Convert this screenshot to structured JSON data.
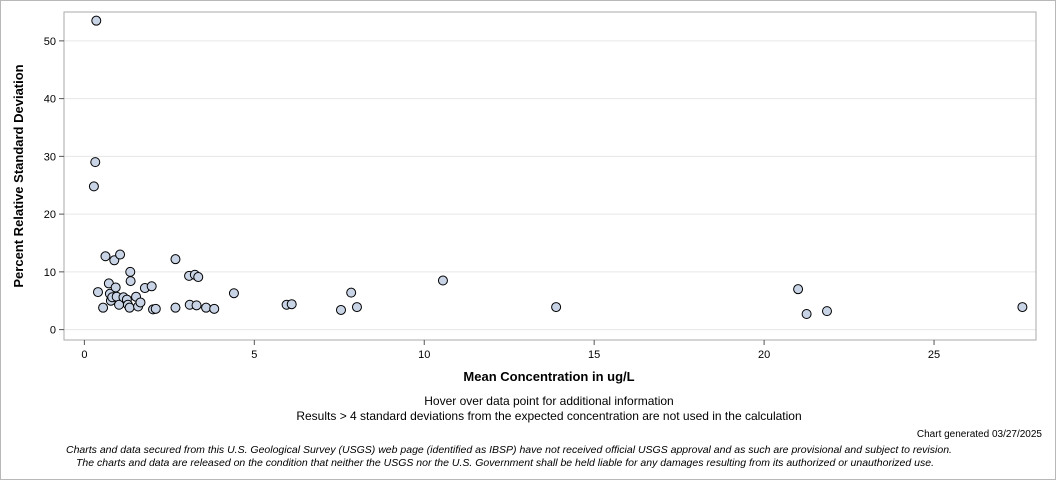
{
  "chart_data": {
    "type": "scatter",
    "xlabel": "Mean Concentration in ug/L",
    "ylabel": "Percent Relative Standard Deviation",
    "xlim": [
      -0.6,
      28.0
    ],
    "ylim": [
      -1.8,
      55.0
    ],
    "xticks": [
      0,
      5,
      10,
      15,
      20,
      25
    ],
    "yticks": [
      0,
      10,
      20,
      30,
      40,
      50
    ],
    "grid": true,
    "legend": "none",
    "marker_fill": "#c8d4e6",
    "marker_edge": "#000000",
    "points": [
      {
        "x": 0.35,
        "y": 53.5
      },
      {
        "x": 0.32,
        "y": 29.0
      },
      {
        "x": 0.28,
        "y": 24.8
      },
      {
        "x": 0.4,
        "y": 6.5
      },
      {
        "x": 0.55,
        "y": 3.8
      },
      {
        "x": 0.62,
        "y": 12.7
      },
      {
        "x": 0.72,
        "y": 8.0
      },
      {
        "x": 0.75,
        "y": 6.2
      },
      {
        "x": 0.78,
        "y": 5.0
      },
      {
        "x": 0.82,
        "y": 5.6
      },
      {
        "x": 0.88,
        "y": 12.0
      },
      {
        "x": 0.92,
        "y": 7.3
      },
      {
        "x": 0.95,
        "y": 5.7
      },
      {
        "x": 1.02,
        "y": 4.3
      },
      {
        "x": 1.05,
        "y": 13.0
      },
      {
        "x": 1.15,
        "y": 5.6
      },
      {
        "x": 1.25,
        "y": 5.2
      },
      {
        "x": 1.28,
        "y": 4.3
      },
      {
        "x": 1.33,
        "y": 3.8
      },
      {
        "x": 1.35,
        "y": 10.0
      },
      {
        "x": 1.36,
        "y": 8.4
      },
      {
        "x": 1.52,
        "y": 5.7
      },
      {
        "x": 1.58,
        "y": 4.0
      },
      {
        "x": 1.65,
        "y": 4.7
      },
      {
        "x": 1.78,
        "y": 7.2
      },
      {
        "x": 1.98,
        "y": 7.5
      },
      {
        "x": 2.02,
        "y": 3.5
      },
      {
        "x": 2.1,
        "y": 3.6
      },
      {
        "x": 2.68,
        "y": 12.2
      },
      {
        "x": 2.68,
        "y": 3.8
      },
      {
        "x": 3.08,
        "y": 9.3
      },
      {
        "x": 3.1,
        "y": 4.3
      },
      {
        "x": 3.25,
        "y": 9.5
      },
      {
        "x": 3.3,
        "y": 4.2
      },
      {
        "x": 3.35,
        "y": 9.1
      },
      {
        "x": 3.58,
        "y": 3.8
      },
      {
        "x": 3.82,
        "y": 3.6
      },
      {
        "x": 4.4,
        "y": 6.3
      },
      {
        "x": 5.95,
        "y": 4.3
      },
      {
        "x": 6.1,
        "y": 4.4
      },
      {
        "x": 7.55,
        "y": 3.4
      },
      {
        "x": 7.85,
        "y": 6.4
      },
      {
        "x": 8.02,
        "y": 3.9
      },
      {
        "x": 10.55,
        "y": 8.5
      },
      {
        "x": 13.88,
        "y": 3.9
      },
      {
        "x": 21.0,
        "y": 7.0
      },
      {
        "x": 21.25,
        "y": 2.7
      },
      {
        "x": 21.85,
        "y": 3.2
      },
      {
        "x": 27.6,
        "y": 3.9
      }
    ]
  },
  "notes": {
    "hover": "Hover over data point for additional information",
    "results": "Results > 4 standard deviations from the expected concentration are not used in the calculation"
  },
  "footer": {
    "generated": "Chart generated 03/27/2025",
    "disclaimer_line1": "Charts and data secured from this U.S. Geological Survey (USGS) web page (identified as IBSP) have not received official USGS approval and as such are provisional and subject to revision.",
    "disclaimer_line2": "The charts and data are released on the condition that neither the USGS nor the U.S. Government shall be held liable for any damages resulting from its authorized or unauthorized use."
  }
}
